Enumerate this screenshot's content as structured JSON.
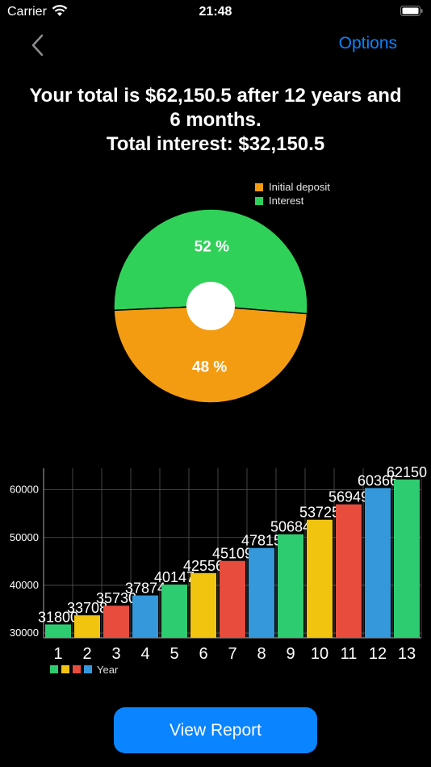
{
  "status_bar": {
    "carrier": "Carrier",
    "time": "21:48"
  },
  "nav": {
    "options_label": "Options",
    "back_icon": "chevron-left-icon"
  },
  "summary": {
    "line1": "Your total is $62,150.5 after 12 years and",
    "line2": "6 months.",
    "line3": "Total interest: $32,150.5"
  },
  "pie_legend": [
    {
      "label": "Initial deposit",
      "color": "#f39c12"
    },
    {
      "label": "Interest",
      "color": "#30d158"
    }
  ],
  "chart_data": [
    {
      "type": "pie",
      "slices": [
        {
          "name": "Interest",
          "value": 52,
          "label": "52 %",
          "color": "#30d158"
        },
        {
          "name": "Initial deposit",
          "value": 48,
          "label": "48 %",
          "color": "#f39c12"
        }
      ]
    },
    {
      "type": "bar",
      "categories": [
        "1",
        "2",
        "3",
        "4",
        "5",
        "6",
        "7",
        "8",
        "9",
        "10",
        "11",
        "12",
        "13"
      ],
      "values": [
        31800,
        33708,
        35730,
        37874,
        40147,
        42556,
        45109,
        47815,
        50684,
        53725,
        56949,
        60366,
        62150
      ],
      "colors": [
        "#2ecc71",
        "#f1c40f",
        "#e74c3c",
        "#3498db"
      ],
      "ylim": [
        29000,
        64500
      ],
      "yticks": [
        30000,
        40000,
        50000,
        60000
      ],
      "legend": "Year",
      "grid": true
    }
  ],
  "buttons": {
    "view_report": "View Report"
  }
}
